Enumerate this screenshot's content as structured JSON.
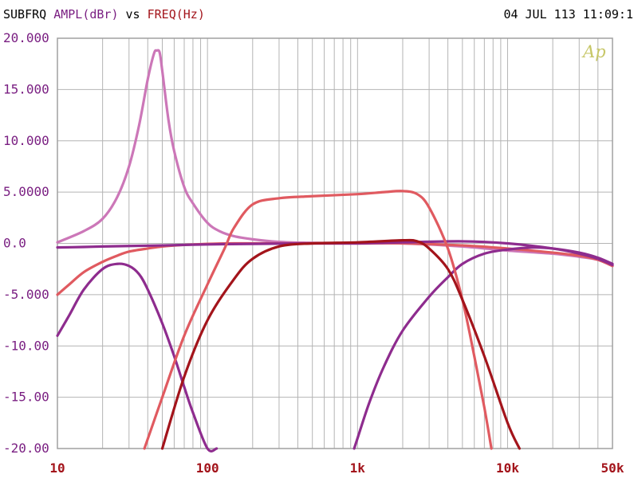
{
  "header": {
    "prefix": "SUBFRQ",
    "y_label": "AMPL(dBr)",
    "vs": "vs",
    "x_label": "FREQ(Hz)",
    "timestamp": "04 JUL 113 11:09:1"
  },
  "logo": "Ap",
  "colors": {
    "y_axis_text": "#7a1f82",
    "x_axis_text": "#a3141b",
    "grid": "#b4b4b4",
    "frame": "#a0a0a0"
  },
  "chart_data": {
    "type": "line",
    "xscale": "log",
    "xlim": [
      10,
      50000
    ],
    "ylim": [
      -20,
      20
    ],
    "grid": true,
    "xlabel": "FREQ(Hz)",
    "ylabel": "AMPL(dBr)",
    "x_tick_labels": [
      {
        "value": 10,
        "label": "10"
      },
      {
        "value": 100,
        "label": "100"
      },
      {
        "value": 1000,
        "label": "1k"
      },
      {
        "value": 10000,
        "label": "10k"
      },
      {
        "value": 50000,
        "label": "50k"
      }
    ],
    "y_tick_labels": [
      {
        "value": 20,
        "label": "20.000"
      },
      {
        "value": 15,
        "label": "15.000"
      },
      {
        "value": 10,
        "label": "10.000"
      },
      {
        "value": 5,
        "label": "5.0000"
      },
      {
        "value": 0,
        "label": "0.0"
      },
      {
        "value": -5,
        "label": "-5.000"
      },
      {
        "value": -10,
        "label": "-10.00"
      },
      {
        "value": -15,
        "label": "-15.00"
      },
      {
        "value": -20,
        "label": "-20.00"
      }
    ],
    "series": [
      {
        "color": "#cc77b8",
        "x": [
          10,
          15,
          20,
          25,
          30,
          35,
          40,
          44,
          46,
          48,
          50,
          55,
          60,
          70,
          80,
          100,
          120,
          150,
          200,
          300,
          500,
          1000,
          2000,
          5000,
          10000,
          20000,
          30000,
          40000,
          50000
        ],
        "y": [
          0.1,
          1.2,
          2.4,
          4.5,
          7.5,
          11.5,
          16.0,
          18.5,
          18.8,
          18.6,
          16.8,
          12.0,
          9.0,
          5.5,
          3.9,
          2.0,
          1.2,
          0.7,
          0.4,
          0.15,
          0.05,
          0.0,
          0.0,
          -0.3,
          -0.7,
          -1.0,
          -1.3,
          -1.6,
          -2.2
        ]
      },
      {
        "color": "#e05a60",
        "x": [
          10,
          12,
          15,
          20,
          25,
          30,
          40,
          50,
          70,
          100,
          150,
          200,
          300,
          500,
          1000,
          2000,
          5000,
          10000,
          20000,
          30000,
          40000,
          50000
        ],
        "y": [
          -5.0,
          -4.0,
          -2.8,
          -1.8,
          -1.2,
          -0.8,
          -0.5,
          -0.3,
          -0.15,
          -0.05,
          0.0,
          0.0,
          0.0,
          0.0,
          0.0,
          0.0,
          -0.2,
          -0.5,
          -0.9,
          -1.2,
          -1.6,
          -2.2
        ]
      },
      {
        "color": "#8e2c8e",
        "x": [
          10,
          15,
          20,
          30,
          50,
          100,
          200,
          500,
          1000,
          2000,
          5000,
          10000,
          20000,
          30000,
          40000,
          50000
        ],
        "y": [
          -0.4,
          -0.35,
          -0.3,
          -0.25,
          -0.2,
          -0.1,
          -0.05,
          0.0,
          0.0,
          0.1,
          0.2,
          0.0,
          -0.5,
          -1.0,
          -1.5,
          -2.1
        ]
      },
      {
        "color": "#8e2c8e",
        "x": [
          10,
          12,
          15,
          20,
          25,
          30,
          35,
          40,
          50,
          60,
          70,
          80,
          100,
          115
        ],
        "y": [
          -9.0,
          -7.0,
          -4.5,
          -2.5,
          -2.0,
          -2.2,
          -3.0,
          -4.5,
          -7.8,
          -11.0,
          -14.0,
          -16.5,
          -20.0,
          -20.0
        ]
      },
      {
        "color": "#8e2c8e",
        "x": [
          950,
          1000,
          1200,
          1500,
          2000,
          3000,
          4000,
          5000,
          7000,
          10000,
          15000,
          20000,
          30000,
          40000,
          50000
        ],
        "y": [
          -20.0,
          -19.0,
          -15.5,
          -12.0,
          -8.5,
          -5.2,
          -3.3,
          -2.0,
          -1.0,
          -0.6,
          -0.4,
          -0.5,
          -0.9,
          -1.4,
          -2.0
        ]
      },
      {
        "color": "#e05a60",
        "x": [
          38,
          50,
          70,
          100,
          130,
          150,
          200,
          300,
          500,
          1000,
          1500,
          2000,
          2500,
          3000,
          4000,
          5000,
          6000,
          7000,
          7800
        ],
        "y": [
          -20.0,
          -15.0,
          -9.0,
          -4.0,
          -0.5,
          1.5,
          3.8,
          4.4,
          4.6,
          4.8,
          5.0,
          5.1,
          4.8,
          3.5,
          -0.5,
          -5.5,
          -11.0,
          -16.0,
          -20.0
        ]
      },
      {
        "color": "#a3141b",
        "x": [
          50,
          70,
          100,
          150,
          200,
          300,
          500,
          1000,
          2000,
          2500,
          3000,
          4000,
          5000,
          7000,
          10000,
          12000
        ],
        "y": [
          -20.0,
          -13.0,
          -7.5,
          -3.5,
          -1.5,
          -0.3,
          0.0,
          0.1,
          0.3,
          0.2,
          -0.5,
          -2.5,
          -5.5,
          -11.0,
          -17.5,
          -20.0
        ]
      }
    ]
  }
}
